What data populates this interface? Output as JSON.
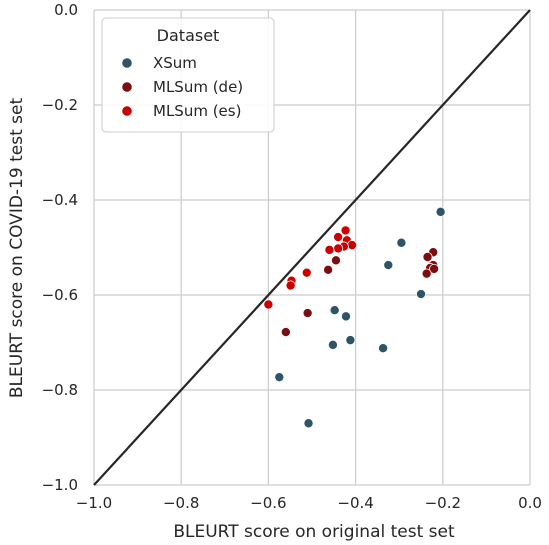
{
  "chart_data": {
    "type": "scatter",
    "xlabel": "BLEURT score on original test set",
    "ylabel": "BLEURT score on COVID-19 test set",
    "xlim": [
      -1.0,
      0.0
    ],
    "ylim": [
      -1.0,
      0.0
    ],
    "xticks": [
      -1.0,
      -0.8,
      -0.6,
      -0.4,
      -0.2,
      0.0
    ],
    "yticks": [
      -1.0,
      -0.8,
      -0.6,
      -0.4,
      -0.2,
      0.0
    ],
    "xtick_labels": [
      "−1.0",
      "−0.8",
      "−0.6",
      "−0.4",
      "−0.2",
      "0.0"
    ],
    "ytick_labels": [
      "−1.0",
      "−0.8",
      "−0.6",
      "−0.4",
      "−0.2",
      "0.0"
    ],
    "grid": true,
    "diagonal_line": true,
    "legend": {
      "title": "Dataset",
      "placement": "top-left"
    },
    "series": [
      {
        "name": "XSum",
        "color": "#2e5468",
        "points": [
          [
            -0.205,
            -0.425
          ],
          [
            -0.295,
            -0.49
          ],
          [
            -0.325,
            -0.537
          ],
          [
            -0.25,
            -0.598
          ],
          [
            -0.448,
            -0.632
          ],
          [
            -0.422,
            -0.645
          ],
          [
            -0.412,
            -0.695
          ],
          [
            -0.452,
            -0.705
          ],
          [
            -0.337,
            -0.712
          ],
          [
            -0.575,
            -0.773
          ],
          [
            -0.508,
            -0.87
          ]
        ]
      },
      {
        "name": "MLSum (de)",
        "color": "#7b0f0f",
        "points": [
          [
            -0.222,
            -0.51
          ],
          [
            -0.235,
            -0.52
          ],
          [
            -0.445,
            -0.527
          ],
          [
            -0.463,
            -0.547
          ],
          [
            -0.222,
            -0.537
          ],
          [
            -0.229,
            -0.543
          ],
          [
            -0.22,
            -0.545
          ],
          [
            -0.237,
            -0.555
          ],
          [
            -0.51,
            -0.638
          ],
          [
            -0.56,
            -0.678
          ]
        ]
      },
      {
        "name": "MLSum (es)",
        "color": "#cc0000",
        "points": [
          [
            -0.423,
            -0.464
          ],
          [
            -0.44,
            -0.478
          ],
          [
            -0.42,
            -0.485
          ],
          [
            -0.408,
            -0.495
          ],
          [
            -0.427,
            -0.498
          ],
          [
            -0.44,
            -0.502
          ],
          [
            -0.46,
            -0.505
          ],
          [
            -0.512,
            -0.553
          ],
          [
            -0.547,
            -0.57
          ],
          [
            -0.549,
            -0.58
          ],
          [
            -0.6,
            -0.62
          ]
        ]
      }
    ]
  }
}
